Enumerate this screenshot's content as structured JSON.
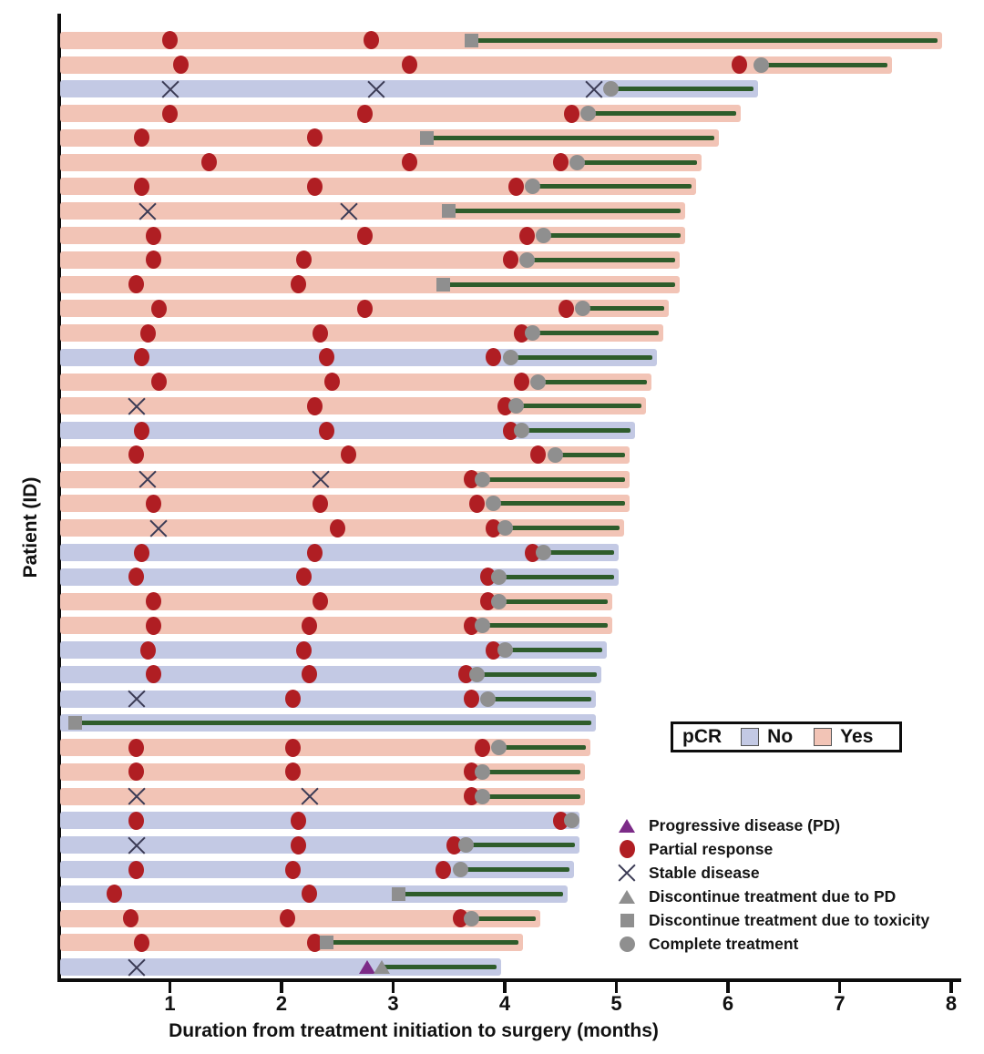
{
  "chart_data": {
    "type": "bar",
    "subtype": "swimmer-plot",
    "title": "",
    "xlabel": "Duration from treatment initiation to surgery (months)",
    "ylabel": "Patient (ID)",
    "xlim": [
      0,
      8
    ],
    "xticks": [
      "1",
      "2",
      "3",
      "4",
      "5",
      "6",
      "7",
      "8"
    ],
    "grid": false,
    "colors": {
      "pcr_no": "#c3c9e4",
      "pcr_yes": "#f2c4b6",
      "post_treatment_line": "#2e5c2b",
      "partial_response": "#b01e23",
      "stable_disease": "#3b3b55",
      "progressive_disease": "#7c2b87",
      "discontinue_gray": "#8f8f8f",
      "axis": "#0d0d0d"
    },
    "pcr_legend": {
      "title": "pCR",
      "items": [
        {
          "label": "No",
          "color": "#c3c9e4"
        },
        {
          "label": "Yes",
          "color": "#f2c4b6"
        }
      ]
    },
    "marker_legend": [
      {
        "marker": "progressive-disease",
        "label": "Progressive disease (PD)"
      },
      {
        "marker": "partial-response",
        "label": "Partial response"
      },
      {
        "marker": "stable-disease",
        "label": "Stable disease"
      },
      {
        "marker": "discontinue-pd",
        "label": "Discontinue treatment due to PD"
      },
      {
        "marker": "discontinue-toxicity",
        "label": "Discontinue treatment due to toxicity"
      },
      {
        "marker": "complete-treatment",
        "label": "Complete treatment"
      }
    ],
    "patients": [
      {
        "pcr": "Yes",
        "surgery_month": 7.9,
        "treatment_end": {
          "type": "discontinue-toxicity",
          "month": 3.7
        },
        "events": [
          {
            "type": "partial-response",
            "month": 1.0
          },
          {
            "type": "partial-response",
            "month": 2.8
          }
        ]
      },
      {
        "pcr": "Yes",
        "surgery_month": 7.45,
        "treatment_end": {
          "type": "complete-treatment",
          "month": 6.3
        },
        "events": [
          {
            "type": "partial-response",
            "month": 1.1
          },
          {
            "type": "partial-response",
            "month": 3.15
          },
          {
            "type": "partial-response",
            "month": 6.1
          }
        ]
      },
      {
        "pcr": "No",
        "surgery_month": 6.25,
        "treatment_end": {
          "type": "complete-treatment",
          "month": 4.95
        },
        "events": [
          {
            "type": "stable-disease",
            "month": 1.0
          },
          {
            "type": "stable-disease",
            "month": 2.85
          },
          {
            "type": "stable-disease",
            "month": 4.8
          }
        ]
      },
      {
        "pcr": "Yes",
        "surgery_month": 6.1,
        "treatment_end": {
          "type": "complete-treatment",
          "month": 4.75
        },
        "events": [
          {
            "type": "partial-response",
            "month": 1.0
          },
          {
            "type": "partial-response",
            "month": 2.75
          },
          {
            "type": "partial-response",
            "month": 4.6
          }
        ]
      },
      {
        "pcr": "Yes",
        "surgery_month": 5.9,
        "treatment_end": {
          "type": "discontinue-toxicity",
          "month": 3.3
        },
        "events": [
          {
            "type": "partial-response",
            "month": 0.75
          },
          {
            "type": "partial-response",
            "month": 2.3
          }
        ]
      },
      {
        "pcr": "Yes",
        "surgery_month": 5.75,
        "treatment_end": {
          "type": "complete-treatment",
          "month": 4.65
        },
        "events": [
          {
            "type": "partial-response",
            "month": 1.35
          },
          {
            "type": "partial-response",
            "month": 3.15
          },
          {
            "type": "partial-response",
            "month": 4.5
          }
        ]
      },
      {
        "pcr": "Yes",
        "surgery_month": 5.7,
        "treatment_end": {
          "type": "complete-treatment",
          "month": 4.25
        },
        "events": [
          {
            "type": "partial-response",
            "month": 0.75
          },
          {
            "type": "partial-response",
            "month": 2.3
          },
          {
            "type": "partial-response",
            "month": 4.1
          }
        ]
      },
      {
        "pcr": "Yes",
        "surgery_month": 5.6,
        "treatment_end": {
          "type": "discontinue-toxicity",
          "month": 3.5
        },
        "events": [
          {
            "type": "stable-disease",
            "month": 0.8
          },
          {
            "type": "stable-disease",
            "month": 2.6
          }
        ]
      },
      {
        "pcr": "Yes",
        "surgery_month": 5.6,
        "treatment_end": {
          "type": "complete-treatment",
          "month": 4.35
        },
        "events": [
          {
            "type": "partial-response",
            "month": 0.85
          },
          {
            "type": "partial-response",
            "month": 2.75
          },
          {
            "type": "partial-response",
            "month": 4.2
          }
        ]
      },
      {
        "pcr": "Yes",
        "surgery_month": 5.55,
        "treatment_end": {
          "type": "complete-treatment",
          "month": 4.2
        },
        "events": [
          {
            "type": "partial-response",
            "month": 0.85
          },
          {
            "type": "partial-response",
            "month": 2.2
          },
          {
            "type": "partial-response",
            "month": 4.05
          }
        ]
      },
      {
        "pcr": "Yes",
        "surgery_month": 5.55,
        "treatment_end": {
          "type": "discontinue-toxicity",
          "month": 3.45
        },
        "events": [
          {
            "type": "partial-response",
            "month": 0.7
          },
          {
            "type": "partial-response",
            "month": 2.15
          }
        ]
      },
      {
        "pcr": "Yes",
        "surgery_month": 5.45,
        "treatment_end": {
          "type": "complete-treatment",
          "month": 4.7
        },
        "events": [
          {
            "type": "partial-response",
            "month": 0.9
          },
          {
            "type": "partial-response",
            "month": 2.75
          },
          {
            "type": "partial-response",
            "month": 4.55
          }
        ]
      },
      {
        "pcr": "Yes",
        "surgery_month": 5.4,
        "treatment_end": {
          "type": "complete-treatment",
          "month": 4.25
        },
        "events": [
          {
            "type": "partial-response",
            "month": 0.8
          },
          {
            "type": "partial-response",
            "month": 2.35
          },
          {
            "type": "partial-response",
            "month": 4.15
          }
        ]
      },
      {
        "pcr": "No",
        "surgery_month": 5.35,
        "treatment_end": {
          "type": "complete-treatment",
          "month": 4.05
        },
        "events": [
          {
            "type": "partial-response",
            "month": 0.75
          },
          {
            "type": "partial-response",
            "month": 2.4
          },
          {
            "type": "partial-response",
            "month": 3.9
          }
        ]
      },
      {
        "pcr": "Yes",
        "surgery_month": 5.3,
        "treatment_end": {
          "type": "complete-treatment",
          "month": 4.3
        },
        "events": [
          {
            "type": "partial-response",
            "month": 0.9
          },
          {
            "type": "partial-response",
            "month": 2.45
          },
          {
            "type": "partial-response",
            "month": 4.15
          }
        ]
      },
      {
        "pcr": "Yes",
        "surgery_month": 5.25,
        "treatment_end": {
          "type": "complete-treatment",
          "month": 4.1
        },
        "events": [
          {
            "type": "stable-disease",
            "month": 0.7
          },
          {
            "type": "partial-response",
            "month": 2.3
          },
          {
            "type": "partial-response",
            "month": 4.0
          }
        ]
      },
      {
        "pcr": "No",
        "surgery_month": 5.15,
        "treatment_end": {
          "type": "complete-treatment",
          "month": 4.15
        },
        "events": [
          {
            "type": "partial-response",
            "month": 0.75
          },
          {
            "type": "partial-response",
            "month": 2.4
          },
          {
            "type": "partial-response",
            "month": 4.05
          }
        ]
      },
      {
        "pcr": "Yes",
        "surgery_month": 5.1,
        "treatment_end": {
          "type": "complete-treatment",
          "month": 4.45
        },
        "events": [
          {
            "type": "partial-response",
            "month": 0.7
          },
          {
            "type": "partial-response",
            "month": 2.6
          },
          {
            "type": "partial-response",
            "month": 4.3
          }
        ]
      },
      {
        "pcr": "Yes",
        "surgery_month": 5.1,
        "treatment_end": {
          "type": "complete-treatment",
          "month": 3.8
        },
        "events": [
          {
            "type": "stable-disease",
            "month": 0.8
          },
          {
            "type": "stable-disease",
            "month": 2.35
          },
          {
            "type": "partial-response",
            "month": 3.7
          }
        ]
      },
      {
        "pcr": "Yes",
        "surgery_month": 5.1,
        "treatment_end": {
          "type": "complete-treatment",
          "month": 3.9
        },
        "events": [
          {
            "type": "partial-response",
            "month": 0.85
          },
          {
            "type": "partial-response",
            "month": 2.35
          },
          {
            "type": "partial-response",
            "month": 3.75
          }
        ]
      },
      {
        "pcr": "Yes",
        "surgery_month": 5.05,
        "treatment_end": {
          "type": "complete-treatment",
          "month": 4.0
        },
        "events": [
          {
            "type": "stable-disease",
            "month": 0.9
          },
          {
            "type": "partial-response",
            "month": 2.5
          },
          {
            "type": "partial-response",
            "month": 3.9
          }
        ]
      },
      {
        "pcr": "No",
        "surgery_month": 5.0,
        "treatment_end": {
          "type": "complete-treatment",
          "month": 4.35
        },
        "events": [
          {
            "type": "partial-response",
            "month": 0.75
          },
          {
            "type": "partial-response",
            "month": 2.3
          },
          {
            "type": "partial-response",
            "month": 4.25
          }
        ]
      },
      {
        "pcr": "No",
        "surgery_month": 5.0,
        "treatment_end": {
          "type": "complete-treatment",
          "month": 3.95
        },
        "events": [
          {
            "type": "partial-response",
            "month": 0.7
          },
          {
            "type": "partial-response",
            "month": 2.2
          },
          {
            "type": "partial-response",
            "month": 3.85
          }
        ]
      },
      {
        "pcr": "Yes",
        "surgery_month": 4.95,
        "treatment_end": {
          "type": "complete-treatment",
          "month": 3.95
        },
        "events": [
          {
            "type": "partial-response",
            "month": 0.85
          },
          {
            "type": "partial-response",
            "month": 2.35
          },
          {
            "type": "partial-response",
            "month": 3.85
          }
        ]
      },
      {
        "pcr": "Yes",
        "surgery_month": 4.95,
        "treatment_end": {
          "type": "complete-treatment",
          "month": 3.8
        },
        "events": [
          {
            "type": "partial-response",
            "month": 0.85
          },
          {
            "type": "partial-response",
            "month": 2.25
          },
          {
            "type": "partial-response",
            "month": 3.7
          }
        ]
      },
      {
        "pcr": "No",
        "surgery_month": 4.9,
        "treatment_end": {
          "type": "complete-treatment",
          "month": 4.0
        },
        "events": [
          {
            "type": "partial-response",
            "month": 0.8
          },
          {
            "type": "partial-response",
            "month": 2.2
          },
          {
            "type": "partial-response",
            "month": 3.9
          }
        ]
      },
      {
        "pcr": "No",
        "surgery_month": 4.85,
        "treatment_end": {
          "type": "complete-treatment",
          "month": 3.75
        },
        "events": [
          {
            "type": "partial-response",
            "month": 0.85
          },
          {
            "type": "partial-response",
            "month": 2.25
          },
          {
            "type": "partial-response",
            "month": 3.65
          }
        ]
      },
      {
        "pcr": "No",
        "surgery_month": 4.8,
        "treatment_end": {
          "type": "complete-treatment",
          "month": 3.85
        },
        "events": [
          {
            "type": "stable-disease",
            "month": 0.7
          },
          {
            "type": "partial-response",
            "month": 2.1
          },
          {
            "type": "partial-response",
            "month": 3.7
          }
        ]
      },
      {
        "pcr": "No",
        "surgery_month": 4.8,
        "treatment_end": {
          "type": "discontinue-toxicity",
          "month": 0.15
        },
        "events": []
      },
      {
        "pcr": "Yes",
        "surgery_month": 4.75,
        "treatment_end": {
          "type": "complete-treatment",
          "month": 3.95
        },
        "events": [
          {
            "type": "partial-response",
            "month": 0.7
          },
          {
            "type": "partial-response",
            "month": 2.1
          },
          {
            "type": "partial-response",
            "month": 3.8
          }
        ]
      },
      {
        "pcr": "Yes",
        "surgery_month": 4.7,
        "treatment_end": {
          "type": "complete-treatment",
          "month": 3.8
        },
        "events": [
          {
            "type": "partial-response",
            "month": 0.7
          },
          {
            "type": "partial-response",
            "month": 2.1
          },
          {
            "type": "partial-response",
            "month": 3.7
          }
        ]
      },
      {
        "pcr": "Yes",
        "surgery_month": 4.7,
        "treatment_end": {
          "type": "complete-treatment",
          "month": 3.8
        },
        "events": [
          {
            "type": "stable-disease",
            "month": 0.7
          },
          {
            "type": "stable-disease",
            "month": 2.25
          },
          {
            "type": "partial-response",
            "month": 3.7
          }
        ]
      },
      {
        "pcr": "No",
        "surgery_month": 4.65,
        "treatment_end": {
          "type": "complete-treatment",
          "month": 4.6
        },
        "events": [
          {
            "type": "partial-response",
            "month": 0.7
          },
          {
            "type": "partial-response",
            "month": 2.15
          },
          {
            "type": "partial-response",
            "month": 4.5
          }
        ]
      },
      {
        "pcr": "No",
        "surgery_month": 4.65,
        "treatment_end": {
          "type": "complete-treatment",
          "month": 3.65
        },
        "events": [
          {
            "type": "stable-disease",
            "month": 0.7
          },
          {
            "type": "partial-response",
            "month": 2.15
          },
          {
            "type": "partial-response",
            "month": 3.55
          }
        ]
      },
      {
        "pcr": "No",
        "surgery_month": 4.6,
        "treatment_end": {
          "type": "complete-treatment",
          "month": 3.6
        },
        "events": [
          {
            "type": "partial-response",
            "month": 0.7
          },
          {
            "type": "partial-response",
            "month": 2.1
          },
          {
            "type": "partial-response",
            "month": 3.45
          }
        ]
      },
      {
        "pcr": "No",
        "surgery_month": 4.55,
        "treatment_end": {
          "type": "discontinue-toxicity",
          "month": 3.05
        },
        "events": [
          {
            "type": "partial-response",
            "month": 0.5
          },
          {
            "type": "partial-response",
            "month": 2.25
          }
        ]
      },
      {
        "pcr": "Yes",
        "surgery_month": 4.3,
        "treatment_end": {
          "type": "complete-treatment",
          "month": 3.7
        },
        "events": [
          {
            "type": "partial-response",
            "month": 0.65
          },
          {
            "type": "partial-response",
            "month": 2.05
          },
          {
            "type": "partial-response",
            "month": 3.6
          }
        ]
      },
      {
        "pcr": "Yes",
        "surgery_month": 4.15,
        "treatment_end": {
          "type": "discontinue-toxicity",
          "month": 2.4
        },
        "events": [
          {
            "type": "partial-response",
            "month": 0.75
          },
          {
            "type": "partial-response",
            "month": 2.3
          }
        ]
      },
      {
        "pcr": "No",
        "surgery_month": 3.95,
        "treatment_end": {
          "type": "discontinue-pd",
          "month": 2.9
        },
        "events": [
          {
            "type": "stable-disease",
            "month": 0.7
          },
          {
            "type": "progressive-disease",
            "month": 2.77
          }
        ]
      }
    ]
  }
}
